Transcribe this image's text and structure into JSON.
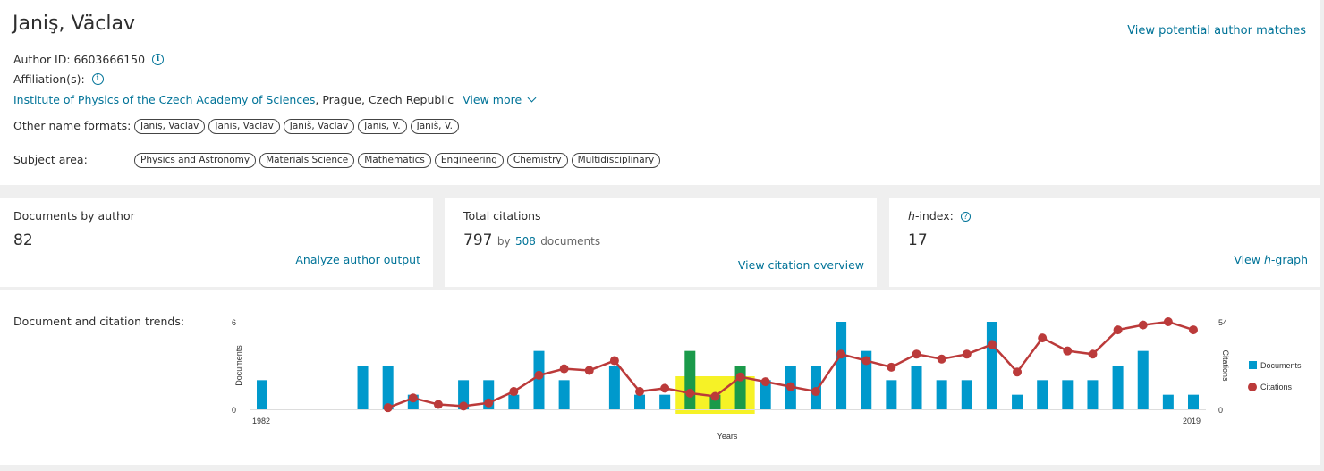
{
  "author": {
    "name": "Janiş, Väclav",
    "view_matches": "View potential author matches",
    "author_id_label": "Author ID: 6603666150",
    "affiliation_label": "Affiliation(s):",
    "affiliation_link": "Institute of Physics of the Czech Academy of Sciences",
    "affiliation_location": ", Prague, Czech Republic",
    "view_more": "View more",
    "other_names_label": "Other name formats:",
    "other_names": [
      "Janiş, Väclav",
      "Janis, Väclav",
      "Janiš, Väclav",
      "Janis, V.",
      "Janiš, V."
    ],
    "subject_label": "Subject area:",
    "subjects": [
      "Physics and Astronomy",
      "Materials Science",
      "Mathematics",
      "Engineering",
      "Chemistry",
      "Multidisciplinary"
    ]
  },
  "metrics": {
    "documents": {
      "title": "Documents by author",
      "value": "82",
      "link": "Analyze author output"
    },
    "citations": {
      "title": "Total citations",
      "value": "797",
      "by": "by",
      "doc_count": "508",
      "doc_word": "documents",
      "link": "View citation overview"
    },
    "hindex": {
      "title_h": "h",
      "title_rest": "-index:",
      "value": "17",
      "link_pre": "View ",
      "link_h": "h",
      "link_post": "-graph"
    }
  },
  "trends": {
    "title": "Document and citation trends:"
  },
  "chart_data": {
    "type": "bar+line",
    "xlabel": "Years",
    "y_left_label": "Documents",
    "y_right_label": "Citations",
    "x_start_label": "1982",
    "x_end_label": "2019",
    "y_left_ticks": [
      "0",
      "6"
    ],
    "y_right_ticks": [
      "0",
      "54"
    ],
    "ylim_documents": [
      0,
      6
    ],
    "ylim_citations": [
      0,
      54
    ],
    "legend": [
      "Documents",
      "Citations"
    ],
    "legend_position": "right",
    "years": [
      1982,
      1983,
      1984,
      1985,
      1986,
      1987,
      1988,
      1989,
      1990,
      1991,
      1992,
      1993,
      1994,
      1995,
      1996,
      1997,
      1998,
      1999,
      2000,
      2001,
      2002,
      2003,
      2004,
      2005,
      2006,
      2007,
      2008,
      2009,
      2010,
      2011,
      2012,
      2013,
      2014,
      2015,
      2016,
      2017,
      2018,
      2019
    ],
    "documents": [
      2,
      0,
      0,
      0,
      3,
      3,
      1,
      0,
      2,
      2,
      1,
      4,
      2,
      0,
      3,
      1,
      1,
      4,
      1,
      3,
      2,
      3,
      3,
      6,
      4,
      2,
      3,
      2,
      2,
      6,
      1,
      2,
      2,
      2,
      3,
      4,
      1,
      1
    ],
    "citations": [
      null,
      null,
      null,
      null,
      null,
      1,
      7,
      3,
      2,
      4,
      11,
      21,
      25,
      24,
      30,
      11,
      13,
      10,
      8,
      20,
      17,
      14,
      11,
      34,
      30,
      26,
      34,
      31,
      34,
      40,
      23,
      44,
      36,
      34,
      49,
      52,
      54,
      49
    ],
    "highlight_years": [
      1999,
      2001
    ],
    "colors": {
      "documents": "#0099cc",
      "citations": "#bb3a3a",
      "highlight": "#f4f000"
    }
  }
}
